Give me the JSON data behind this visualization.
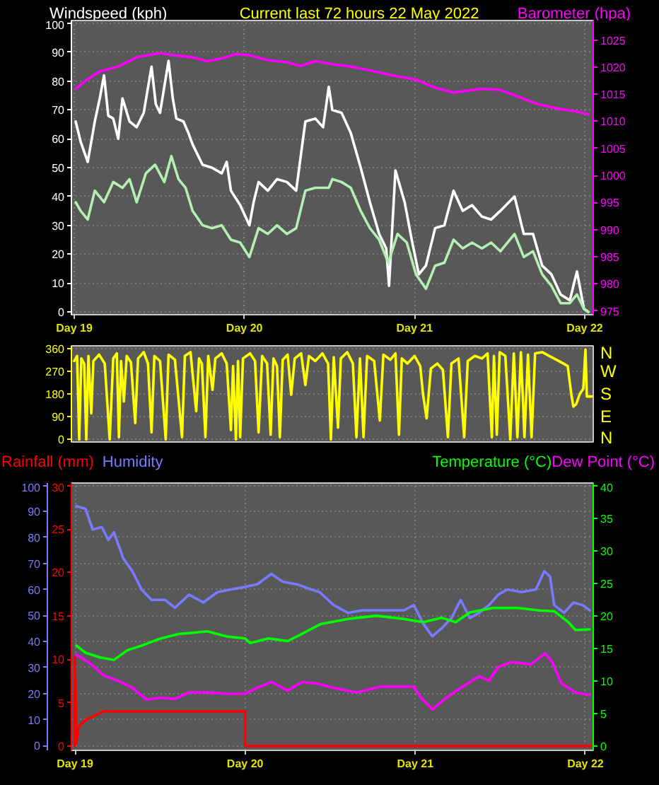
{
  "chart_data": [
    {
      "type": "line",
      "title": "Current last 72 hours 22 May 2022",
      "ylabel": "Windspeed (kph)",
      "y2label": "Barometer (hpa)",
      "xlim": [
        "2022-05-18T23:36",
        "2022-05-22T01:12"
      ],
      "xticks": [
        {
          "value": "2022-05-19",
          "label": "Day 19"
        },
        {
          "value": "2022-05-20",
          "label": "Day 20"
        },
        {
          "value": "2022-05-21",
          "label": "Day 21"
        },
        {
          "value": "2022-05-22",
          "label": "Day 22"
        }
      ],
      "ylim": [
        -1,
        101
      ],
      "yticks": [
        0,
        10,
        20,
        30,
        40,
        50,
        60,
        70,
        80,
        90,
        100
      ],
      "y2lim": [
        974.3,
        1028.6
      ],
      "y2ticks": [
        975,
        980,
        985,
        990,
        995,
        1000,
        1005,
        1010,
        1015,
        1020,
        1025
      ],
      "grid": true,
      "series": [
        {
          "color": "#ffffff",
          "x": [
            "2022-05-19T00:12",
            "2022-05-19T00:54",
            "2022-05-19T01:54",
            "2022-05-19T02:54",
            "2022-05-19T03:36",
            "2022-05-19T04:12",
            "2022-05-19T04:48",
            "2022-05-19T05:30",
            "2022-05-19T06:12",
            "2022-05-19T06:48",
            "2022-05-19T07:48",
            "2022-05-19T08:48",
            "2022-05-19T09:48",
            "2022-05-19T10:54",
            "2022-05-19T11:30",
            "2022-05-19T12:06",
            "2022-05-19T13:18",
            "2022-05-19T13:54",
            "2022-05-19T14:24",
            "2022-05-19T15:24",
            "2022-05-19T16:06",
            "2022-05-19T16:42",
            "2022-05-19T18:06",
            "2022-05-19T19:24",
            "2022-05-19T20:48",
            "2022-05-19T21:30",
            "2022-05-19T22:06",
            "2022-05-19T23:24",
            "2022-05-20T00:42",
            "2022-05-20T01:18",
            "2022-05-20T02:00",
            "2022-05-20T03:18",
            "2022-05-20T04:36",
            "2022-05-20T06:00",
            "2022-05-20T07:18",
            "2022-05-20T08:00",
            "2022-05-20T08:36",
            "2022-05-20T10:00",
            "2022-05-20T11:06",
            "2022-05-20T11:54",
            "2022-05-20T12:24",
            "2022-05-20T13:42",
            "2022-05-20T15:00",
            "2022-05-20T16:24",
            "2022-05-20T17:42",
            "2022-05-20T19:00",
            "2022-05-20T20:00",
            "2022-05-20T20:24",
            "2022-05-20T21:18",
            "2022-05-20T22:36",
            "2022-05-20T23:36",
            "2022-05-21T00:36",
            "2022-05-21T01:36",
            "2022-05-21T02:54",
            "2022-05-21T04:12",
            "2022-05-21T05:30",
            "2022-05-21T06:48",
            "2022-05-21T08:06",
            "2022-05-21T09:30",
            "2022-05-21T10:48",
            "2022-05-21T12:06",
            "2022-05-21T14:06",
            "2022-05-21T15:24",
            "2022-05-21T16:42",
            "2022-05-21T18:00",
            "2022-05-21T19:18",
            "2022-05-21T20:36",
            "2022-05-21T21:54",
            "2022-05-21T22:54",
            "2022-05-21T23:54",
            "2022-05-22T00:30"
          ],
          "values": [
            66,
            59,
            52,
            66,
            74,
            82,
            68,
            67,
            60,
            74,
            66,
            64,
            69,
            85,
            72,
            69,
            87,
            74,
            67,
            66,
            62,
            58,
            51,
            50,
            48,
            52,
            42,
            37,
            30,
            38,
            45,
            42,
            46,
            45,
            42,
            55,
            66,
            67,
            64,
            78,
            70,
            69,
            62,
            50,
            38,
            27,
            22,
            9,
            49,
            38,
            25,
            13,
            16,
            29,
            30,
            42,
            35,
            37,
            33,
            32,
            35,
            40,
            27,
            27,
            16,
            13,
            6,
            4,
            14,
            1,
            0
          ]
        },
        {
          "color": "#b4f0b4",
          "x": [
            "2022-05-19T00:12",
            "2022-05-19T00:54",
            "2022-05-19T01:54",
            "2022-05-19T02:54",
            "2022-05-19T04:12",
            "2022-05-19T05:30",
            "2022-05-19T06:48",
            "2022-05-19T07:48",
            "2022-05-19T08:48",
            "2022-05-19T10:06",
            "2022-05-19T11:24",
            "2022-05-19T12:42",
            "2022-05-19T13:42",
            "2022-05-19T14:42",
            "2022-05-19T15:42",
            "2022-05-19T16:42",
            "2022-05-19T18:06",
            "2022-05-19T19:24",
            "2022-05-19T20:48",
            "2022-05-19T22:06",
            "2022-05-19T23:24",
            "2022-05-20T00:42",
            "2022-05-20T02:00",
            "2022-05-20T03:18",
            "2022-05-20T04:36",
            "2022-05-20T06:00",
            "2022-05-20T07:18",
            "2022-05-20T08:36",
            "2022-05-20T10:00",
            "2022-05-20T11:54",
            "2022-05-20T12:24",
            "2022-05-20T13:42",
            "2022-05-20T15:00",
            "2022-05-20T16:24",
            "2022-05-20T17:42",
            "2022-05-20T19:00",
            "2022-05-20T20:18",
            "2022-05-20T21:36",
            "2022-05-20T22:54",
            "2022-05-21T00:12",
            "2022-05-21T01:36",
            "2022-05-21T02:54",
            "2022-05-21T04:12",
            "2022-05-21T05:30",
            "2022-05-21T06:48",
            "2022-05-21T08:06",
            "2022-05-21T09:30",
            "2022-05-21T10:48",
            "2022-05-21T12:06",
            "2022-05-21T14:06",
            "2022-05-21T15:24",
            "2022-05-21T16:42",
            "2022-05-21T18:00",
            "2022-05-21T19:18",
            "2022-05-21T20:36",
            "2022-05-21T21:54",
            "2022-05-21T22:54",
            "2022-05-21T23:54",
            "2022-05-22T00:30"
          ],
          "values": [
            38,
            35,
            32,
            42,
            38,
            45,
            43,
            46,
            38,
            48,
            51,
            45,
            54,
            46,
            43,
            35,
            30,
            29,
            30,
            25,
            24,
            19,
            29,
            27,
            30,
            27,
            29,
            42,
            43,
            43,
            46,
            45,
            43,
            35,
            29,
            25,
            17,
            27,
            24,
            13,
            8,
            16,
            17,
            25,
            22,
            24,
            22,
            24,
            21,
            27,
            19,
            21,
            13,
            9,
            3,
            3,
            6,
            1,
            0
          ]
        },
        {
          "color": "#ff00ff",
          "axis": "y2",
          "x": [
            "2022-05-19T00:12",
            "2022-05-19T01:36",
            "2022-05-19T03:36",
            "2022-05-19T06:12",
            "2022-05-19T08:48",
            "2022-05-19T12:06",
            "2022-05-19T14:06",
            "2022-05-19T16:42",
            "2022-05-19T18:42",
            "2022-05-19T20:48",
            "2022-05-19T22:48",
            "2022-05-20T00:42",
            "2022-05-20T03:18",
            "2022-05-20T06:00",
            "2022-05-20T07:54",
            "2022-05-20T10:00",
            "2022-05-20T12:36",
            "2022-05-20T15:00",
            "2022-05-20T17:42",
            "2022-05-20T21:36",
            "2022-05-21T00:12",
            "2022-05-21T02:54",
            "2022-05-21T05:30",
            "2022-05-21T09:30",
            "2022-05-21T12:06",
            "2022-05-21T14:42",
            "2022-05-21T17:18",
            "2022-05-21T19:54",
            "2022-05-21T22:30",
            "2022-05-22T00:30"
          ],
          "values": [
            1016.0,
            1017.5,
            1019.2,
            1020.1,
            1021.8,
            1022.6,
            1022.2,
            1021.8,
            1021.1,
            1021.6,
            1022.4,
            1022.2,
            1021.3,
            1020.9,
            1020.2,
            1021.1,
            1020.5,
            1020.1,
            1019.4,
            1018.3,
            1017.7,
            1016.2,
            1015.3,
            1016.0,
            1015.8,
            1014.5,
            1013.2,
            1012.4,
            1011.9,
            1011.3
          ]
        }
      ]
    },
    {
      "type": "line",
      "xlim": [
        "2022-05-18T23:36",
        "2022-05-22T01:12"
      ],
      "ylim": [
        -10,
        370
      ],
      "yticks": [
        0,
        90,
        180,
        270,
        360
      ],
      "tick_labels": "y",
      "grid": "y",
      "annotations": [
        "N",
        "W",
        "S",
        "E",
        "N"
      ],
      "series": [
        {
          "color": "#ffff00",
          "x": [
            "2022-05-19T00:00",
            "2022-05-19T00:24",
            "2022-05-19T00:42",
            "2022-05-19T01:00",
            "2022-05-19T01:24",
            "2022-05-19T01:42",
            "2022-05-19T02:00",
            "2022-05-19T02:24",
            "2022-05-19T02:42",
            "2022-05-19T03:30",
            "2022-05-19T04:18",
            "2022-05-19T05:00",
            "2022-05-19T05:30",
            "2022-05-19T06:00",
            "2022-05-19T06:18",
            "2022-05-19T06:36",
            "2022-05-19T07:00",
            "2022-05-19T07:24",
            "2022-05-19T08:00",
            "2022-05-19T08:36",
            "2022-05-19T09:00",
            "2022-05-19T09:48",
            "2022-05-19T10:24",
            "2022-05-19T10:54",
            "2022-05-19T11:18",
            "2022-05-19T12:06",
            "2022-05-19T12:54",
            "2022-05-19T13:18",
            "2022-05-19T14:12",
            "2022-05-19T15:12",
            "2022-05-19T15:36",
            "2022-05-19T16:24",
            "2022-05-19T17:12",
            "2022-05-19T17:36",
            "2022-05-19T18:00",
            "2022-05-19T18:30",
            "2022-05-19T18:54",
            "2022-05-19T19:30",
            "2022-05-19T19:54",
            "2022-05-19T20:48",
            "2022-05-19T21:30",
            "2022-05-19T22:06",
            "2022-05-19T22:24",
            "2022-05-19T22:48",
            "2022-05-19T23:06",
            "2022-05-19T23:24",
            "2022-05-19T23:48",
            "2022-05-20T00:48",
            "2022-05-20T01:30",
            "2022-05-20T02:00",
            "2022-05-20T02:30",
            "2022-05-20T03:12",
            "2022-05-20T03:42",
            "2022-05-20T04:06",
            "2022-05-20T04:36",
            "2022-05-20T05:00",
            "2022-05-20T05:24",
            "2022-05-20T06:06",
            "2022-05-20T06:36",
            "2022-05-20T07:06",
            "2022-05-20T08:00",
            "2022-05-20T08:36",
            "2022-05-20T09:06",
            "2022-05-20T10:00",
            "2022-05-20T11:00",
            "2022-05-20T11:48",
            "2022-05-20T12:12",
            "2022-05-20T12:36",
            "2022-05-20T13:12",
            "2022-05-20T13:36",
            "2022-05-20T14:30",
            "2022-05-20T15:18",
            "2022-05-20T15:48",
            "2022-05-20T16:18",
            "2022-05-20T16:48",
            "2022-05-20T17:18",
            "2022-05-20T18:18",
            "2022-05-20T19:06",
            "2022-05-20T19:36",
            "2022-05-20T20:36",
            "2022-05-20T21:18",
            "2022-05-20T21:48",
            "2022-05-20T22:12",
            "2022-05-20T23:00",
            "2022-05-21T00:00",
            "2022-05-21T00:48",
            "2022-05-21T01:12",
            "2022-05-21T01:42",
            "2022-05-21T02:18",
            "2022-05-21T03:12",
            "2022-05-21T04:00",
            "2022-05-21T04:42",
            "2022-05-21T05:12",
            "2022-05-21T06:12",
            "2022-05-21T07:00",
            "2022-05-21T07:30",
            "2022-05-21T08:30",
            "2022-05-21T09:30",
            "2022-05-21T10:18",
            "2022-05-21T10:54",
            "2022-05-21T11:12",
            "2022-05-21T11:36",
            "2022-05-21T12:00",
            "2022-05-21T12:48",
            "2022-05-21T13:30",
            "2022-05-21T14:00",
            "2022-05-21T14:30",
            "2022-05-21T15:00",
            "2022-05-21T15:30",
            "2022-05-21T16:00",
            "2022-05-21T16:30",
            "2022-05-21T17:00",
            "2022-05-21T18:00",
            "2022-05-21T19:00",
            "2022-05-21T20:00",
            "2022-05-21T21:00",
            "2022-05-21T21:36",
            "2022-05-21T22:06",
            "2022-05-21T22:24",
            "2022-05-21T22:48",
            "2022-05-21T23:18",
            "2022-05-21T23:48",
            "2022-05-22T00:06",
            "2022-05-22T00:18",
            "2022-05-22T01:00"
          ],
          "values": [
            310,
            330,
            0,
            320,
            300,
            0,
            330,
            103,
            310,
            335,
            300,
            0,
            320,
            340,
            9,
            310,
            150,
            330,
            305,
            65,
            320,
            345,
            300,
            28,
            330,
            310,
            0,
            335,
            315,
            9,
            330,
            345,
            112,
            320,
            300,
            9,
            330,
            196,
            320,
            340,
            300,
            37,
            290,
            0,
            310,
            9,
            320,
            340,
            310,
            28,
            330,
            300,
            19,
            320,
            290,
            9,
            315,
            335,
            177,
            320,
            340,
            215,
            330,
            310,
            340,
            300,
            0,
            325,
            47,
            320,
            345,
            300,
            9,
            320,
            9,
            330,
            310,
            75,
            335,
            315,
            340,
            19,
            320,
            300,
            330,
            290,
            177,
            84,
            280,
            300,
            275,
            9,
            300,
            320,
            9,
            310,
            330,
            320,
            340,
            9,
            330,
            19,
            345,
            330,
            0,
            340,
            9,
            345,
            9,
            335,
            9,
            340,
            345,
            330,
            315,
            300,
            290,
            180,
            130,
            140,
            180,
            200,
            355,
            170,
            170
          ]
        }
      ]
    },
    {
      "type": "line",
      "xlim": [
        "2022-05-18T23:30",
        "2022-05-22T01:06"
      ],
      "xticks": [
        {
          "value": "2022-05-19",
          "label": "Day 19"
        },
        {
          "value": "2022-05-20",
          "label": "Day 20"
        },
        {
          "value": "2022-05-21",
          "label": "Day 21"
        },
        {
          "value": "2022-05-22",
          "label": "Day 22"
        }
      ],
      "ylim": [
        -1.8,
        100.9
      ],
      "yticks": [
        0,
        10,
        20,
        30,
        40,
        50,
        60,
        70,
        80,
        90,
        100
      ],
      "y2lim": [
        -0.7,
        40.4
      ],
      "y2ticks": [
        0,
        5,
        10,
        15,
        20,
        25,
        30,
        35,
        40
      ],
      "y3lim": [
        -0.5,
        30.3
      ],
      "y3ticks": [
        0,
        5,
        10,
        15,
        20,
        25,
        30
      ],
      "grid": true,
      "legend": "top",
      "series": [
        {
          "name": "Rainfall (mm)",
          "color": "#ff0000",
          "axis": "y3",
          "x": [
            "2022-05-19T00:00",
            "2022-05-19T00:00",
            "2022-05-19T00:12",
            "2022-05-19T00:30",
            "2022-05-19T01:30",
            "2022-05-19T02:48",
            "2022-05-19T04:06",
            "2022-05-20T00:00",
            "2022-05-20T00:00",
            "2022-05-22T00:48"
          ],
          "values": [
            0,
            10.3,
            0.3,
            2.2,
            3.0,
            3.5,
            4.0,
            4.0,
            0,
            0
          ]
        },
        {
          "name": "Humidity",
          "color": "#7a7aff",
          "x": [
            "2022-05-19T00:12",
            "2022-05-19T01:30",
            "2022-05-19T02:30",
            "2022-05-19T03:48",
            "2022-05-19T04:42",
            "2022-05-19T05:30",
            "2022-05-19T06:48",
            "2022-05-19T08:06",
            "2022-05-19T09:24",
            "2022-05-19T10:48",
            "2022-05-19T12:42",
            "2022-05-19T14:06",
            "2022-05-19T16:06",
            "2022-05-19T18:06",
            "2022-05-19T20:06",
            "2022-05-19T22:00",
            "2022-05-20T00:00",
            "2022-05-20T01:42",
            "2022-05-20T03:42",
            "2022-05-20T05:18",
            "2022-05-20T07:18",
            "2022-05-20T09:18",
            "2022-05-20T10:30",
            "2022-05-20T12:30",
            "2022-05-20T14:30",
            "2022-05-20T16:30",
            "2022-05-20T18:30",
            "2022-05-20T20:24",
            "2022-05-20T22:24",
            "2022-05-20T23:48",
            "2022-05-21T01:06",
            "2022-05-21T02:24",
            "2022-05-21T03:42",
            "2022-05-21T05:06",
            "2022-05-21T06:24",
            "2022-05-21T07:42",
            "2022-05-21T09:00",
            "2022-05-21T10:24",
            "2022-05-21T11:42",
            "2022-05-21T13:00",
            "2022-05-21T15:00",
            "2022-05-21T17:00",
            "2022-05-21T18:12",
            "2022-05-21T19:00",
            "2022-05-21T19:36",
            "2022-05-21T21:00",
            "2022-05-21T22:18",
            "2022-05-21T23:36",
            "2022-05-22T00:36"
          ],
          "values": [
            92,
            91,
            83,
            84,
            79,
            82,
            72,
            67,
            60,
            56,
            56,
            53,
            58,
            55,
            59,
            60,
            61,
            62,
            66,
            63,
            62,
            60,
            59,
            54,
            51,
            52,
            52,
            52,
            52,
            54,
            47,
            42,
            45,
            49,
            56,
            49,
            51,
            54,
            58,
            60,
            59,
            60,
            67,
            65,
            54,
            51,
            55,
            54,
            52
          ]
        },
        {
          "name": "Temperature (°C)",
          "color": "#00ff00",
          "axis": "y2",
          "x": [
            "2022-05-19T00:12",
            "2022-05-19T01:30",
            "2022-05-19T03:30",
            "2022-05-19T05:30",
            "2022-05-19T07:24",
            "2022-05-19T09:24",
            "2022-05-19T12:06",
            "2022-05-19T14:42",
            "2022-05-19T18:42",
            "2022-05-19T21:24",
            "2022-05-20T00:00",
            "2022-05-20T00:42",
            "2022-05-20T03:18",
            "2022-05-20T06:00",
            "2022-05-20T08:00",
            "2022-05-20T10:36",
            "2022-05-20T14:30",
            "2022-05-20T18:30",
            "2022-05-20T22:24",
            "2022-05-21T01:06",
            "2022-05-21T03:42",
            "2022-05-21T05:42",
            "2022-05-21T07:42",
            "2022-05-21T11:00",
            "2022-05-21T14:18",
            "2022-05-21T17:36",
            "2022-05-21T19:36",
            "2022-05-21T21:36",
            "2022-05-21T22:36",
            "2022-05-22T00:36"
          ],
          "values": [
            15.4,
            14.3,
            13.6,
            13.2,
            14.7,
            15.4,
            16.5,
            17.2,
            17.6,
            16.8,
            16.5,
            15.8,
            16.5,
            16.1,
            17.2,
            18.7,
            19.5,
            20.0,
            19.5,
            19.0,
            19.7,
            19.0,
            20.5,
            21.2,
            21.2,
            20.8,
            20.7,
            19.0,
            17.8,
            17.9
          ]
        },
        {
          "name": "Dew Point (°C)",
          "color": "#ff00ff",
          "axis": "y2",
          "x": [
            "2022-05-19T00:12",
            "2022-05-19T02:06",
            "2022-05-19T04:06",
            "2022-05-19T06:06",
            "2022-05-19T08:06",
            "2022-05-19T10:06",
            "2022-05-19T12:06",
            "2022-05-19T14:06",
            "2022-05-19T16:06",
            "2022-05-19T18:42",
            "2022-05-19T21:24",
            "2022-05-20T00:00",
            "2022-05-20T01:42",
            "2022-05-20T03:42",
            "2022-05-20T06:00",
            "2022-05-20T08:00",
            "2022-05-20T10:00",
            "2022-05-20T12:30",
            "2022-05-20T15:48",
            "2022-05-20T19:06",
            "2022-05-20T23:48",
            "2022-05-21T00:48",
            "2022-05-21T02:24",
            "2022-05-21T04:24",
            "2022-05-21T06:24",
            "2022-05-21T09:00",
            "2022-05-21T10:24",
            "2022-05-21T11:42",
            "2022-05-21T13:42",
            "2022-05-21T16:18",
            "2022-05-21T18:18",
            "2022-05-21T19:18",
            "2022-05-21T20:36",
            "2022-05-21T22:36",
            "2022-05-22T00:36"
          ],
          "values": [
            14.0,
            12.7,
            10.8,
            10.0,
            8.9,
            7.1,
            7.4,
            7.2,
            8.2,
            8.2,
            8.0,
            8.0,
            8.9,
            9.8,
            8.5,
            9.8,
            9.6,
            8.9,
            8.2,
            9.1,
            9.1,
            7.4,
            5.6,
            7.4,
            8.9,
            10.7,
            10.0,
            12.1,
            12.9,
            12.5,
            14.2,
            12.9,
            9.6,
            8.2,
            7.8
          ]
        }
      ]
    }
  ]
}
